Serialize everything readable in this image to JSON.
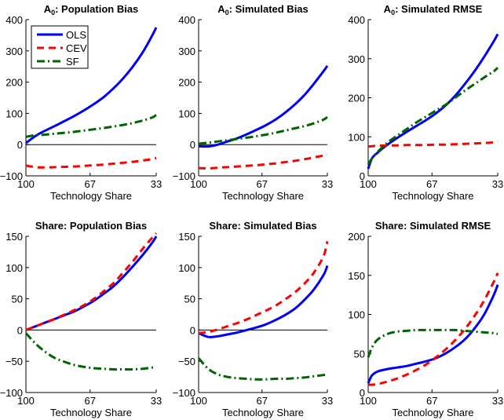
{
  "chart_data": [
    {
      "type": "line",
      "title": "A0: Population Bias",
      "title_main": "A",
      "title_sub": "0",
      "title_rest": ": Population Bias",
      "xlabel": "Technology Share",
      "ylabel": "",
      "xlim": [
        100,
        33
      ],
      "ylim": [
        -100,
        400
      ],
      "xticks": [
        100,
        67,
        33
      ],
      "yticks": [
        -100,
        0,
        100,
        200,
        300,
        400
      ],
      "zero_line": true,
      "legend": {
        "placement": "top-left",
        "entries": [
          "OLS",
          "CEV",
          "SF"
        ]
      },
      "x": [
        100,
        95,
        90,
        85,
        80,
        75,
        70,
        65,
        60,
        55,
        50,
        45,
        40,
        35,
        33
      ],
      "series": [
        {
          "name": "OLS",
          "values": [
            5,
            28,
            45,
            60,
            76,
            92,
            110,
            130,
            152,
            180,
            212,
            250,
            295,
            350,
            375
          ]
        },
        {
          "name": "CEV",
          "values": [
            -67,
            -72,
            -73,
            -72,
            -71,
            -70,
            -68,
            -66,
            -64,
            -61,
            -58,
            -55,
            -51,
            -46,
            -43
          ]
        },
        {
          "name": "SF",
          "values": [
            25,
            30,
            32,
            35,
            38,
            41,
            45,
            49,
            53,
            58,
            63,
            69,
            77,
            87,
            95
          ]
        }
      ]
    },
    {
      "type": "line",
      "title": "A0: Simulated Bias",
      "title_main": "A",
      "title_sub": "0",
      "title_rest": ": Simulated Bias",
      "xlabel": "Technology Share",
      "ylabel": "",
      "xlim": [
        100,
        33
      ],
      "ylim": [
        -100,
        400
      ],
      "xticks": [
        100,
        67,
        33
      ],
      "yticks": [
        -100,
        0,
        100,
        200,
        300,
        400
      ],
      "zero_line": true,
      "x": [
        100,
        95,
        90,
        85,
        80,
        75,
        70,
        65,
        60,
        55,
        50,
        45,
        40,
        35,
        33
      ],
      "series": [
        {
          "name": "OLS",
          "values": [
            -5,
            -6,
            0,
            10,
            20,
            33,
            47,
            62,
            80,
            102,
            128,
            158,
            195,
            235,
            252
          ]
        },
        {
          "name": "CEV",
          "values": [
            -75,
            -76,
            -74,
            -72,
            -70,
            -68,
            -66,
            -63,
            -60,
            -56,
            -52,
            -47,
            -41,
            -35,
            -32
          ]
        },
        {
          "name": "SF",
          "values": [
            3,
            6,
            10,
            14,
            18,
            22,
            27,
            32,
            38,
            45,
            52,
            59,
            68,
            80,
            88
          ]
        }
      ]
    },
    {
      "type": "line",
      "title": "A0: Simulated RMSE",
      "title_main": "A",
      "title_sub": "0",
      "title_rest": ": Simulated RMSE",
      "xlabel": "Technology Share",
      "ylabel": "",
      "xlim": [
        100,
        33
      ],
      "ylim": [
        0,
        400
      ],
      "xticks": [
        100,
        67,
        33
      ],
      "yticks": [
        0,
        100,
        200,
        300,
        400
      ],
      "zero_line": false,
      "x": [
        100,
        98,
        95,
        90,
        85,
        80,
        75,
        70,
        65,
        60,
        55,
        50,
        45,
        40,
        35,
        33
      ],
      "series": [
        {
          "name": "OLS",
          "values": [
            18,
            45,
            60,
            80,
            97,
            113,
            128,
            143,
            160,
            180,
            205,
            235,
            268,
            305,
            345,
            363
          ]
        },
        {
          "name": "CEV",
          "values": [
            75,
            76,
            77,
            78,
            78,
            79,
            79,
            79,
            80,
            80,
            81,
            82,
            83,
            84,
            86,
            88
          ]
        },
        {
          "name": "SF",
          "values": [
            30,
            45,
            62,
            85,
            103,
            120,
            137,
            152,
            167,
            182,
            200,
            218,
            235,
            252,
            268,
            277
          ]
        }
      ]
    },
    {
      "type": "line",
      "title": "Share: Population Bias",
      "xlabel": "Technology Share",
      "ylabel": "",
      "xlim": [
        100,
        33
      ],
      "ylim": [
        -100,
        150
      ],
      "xticks": [
        100,
        67,
        33
      ],
      "yticks": [
        -100,
        -50,
        0,
        50,
        100,
        150
      ],
      "zero_line": true,
      "x": [
        100,
        95,
        90,
        85,
        80,
        75,
        70,
        65,
        60,
        55,
        50,
        45,
        40,
        35,
        33
      ],
      "series": [
        {
          "name": "OLS",
          "values": [
            0,
            6,
            12,
            18,
            24,
            30,
            38,
            47,
            58,
            70,
            85,
            102,
            120,
            140,
            150
          ]
        },
        {
          "name": "CEV",
          "values": [
            0,
            6,
            12,
            18,
            25,
            32,
            40,
            50,
            62,
            75,
            92,
            110,
            130,
            148,
            155
          ]
        },
        {
          "name": "SF",
          "values": [
            -5,
            -22,
            -35,
            -45,
            -51,
            -56,
            -59,
            -61,
            -62,
            -63,
            -63,
            -63,
            -62,
            -60,
            -59
          ]
        }
      ]
    },
    {
      "type": "line",
      "title": "Share: Simulated Bias",
      "xlabel": "Technology Share",
      "ylabel": "",
      "xlim": [
        100,
        33
      ],
      "ylim": [
        -100,
        150
      ],
      "xticks": [
        100,
        67,
        33
      ],
      "yticks": [
        -100,
        -50,
        0,
        50,
        100,
        150
      ],
      "zero_line": true,
      "x": [
        100,
        95,
        90,
        85,
        80,
        75,
        70,
        65,
        60,
        55,
        50,
        45,
        40,
        35,
        33
      ],
      "series": [
        {
          "name": "OLS",
          "values": [
            -5,
            -11,
            -10,
            -7,
            -4,
            0,
            4,
            9,
            16,
            24,
            34,
            48,
            65,
            88,
            103
          ]
        },
        {
          "name": "CEV",
          "values": [
            -5,
            -3,
            1,
            6,
            11,
            17,
            24,
            31,
            39,
            49,
            60,
            74,
            92,
            118,
            142
          ]
        },
        {
          "name": "SF",
          "values": [
            -45,
            -62,
            -71,
            -75,
            -77,
            -78,
            -79,
            -79,
            -78,
            -78,
            -77,
            -76,
            -74,
            -72,
            -71
          ]
        }
      ]
    },
    {
      "type": "line",
      "title": "Share: Simulated RMSE",
      "xlabel": "Technology Share",
      "ylabel": "",
      "xlim": [
        100,
        33
      ],
      "ylim": [
        0,
        200
      ],
      "xticks": [
        100,
        67,
        33
      ],
      "yticks": [
        0,
        50,
        100,
        150,
        200
      ],
      "zero_line": false,
      "x": [
        100,
        98,
        95,
        90,
        85,
        80,
        75,
        70,
        65,
        60,
        55,
        50,
        45,
        40,
        35,
        33
      ],
      "series": [
        {
          "name": "OLS",
          "values": [
            12,
            22,
            27,
            30,
            32,
            34,
            37,
            40,
            44,
            50,
            58,
            68,
            82,
            100,
            125,
            138
          ]
        },
        {
          "name": "CEV",
          "values": [
            10,
            10,
            11,
            14,
            18,
            23,
            29,
            36,
            45,
            55,
            67,
            81,
            98,
            118,
            142,
            153
          ]
        },
        {
          "name": "SF",
          "values": [
            45,
            58,
            68,
            75,
            78,
            79,
            80,
            80,
            80,
            80,
            80,
            79,
            78,
            77,
            76,
            75
          ]
        }
      ]
    }
  ],
  "colors": {
    "OLS": "#0000ff",
    "CEV": "#ff0000",
    "SF": "#006400",
    "axis": "#000000"
  }
}
